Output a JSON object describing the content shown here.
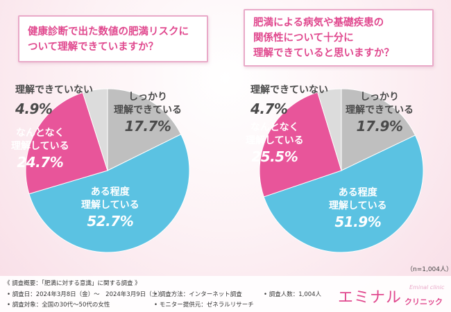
{
  "chart_data": [
    {
      "type": "pie",
      "title_lines": [
        "健康診断で出た数値の肥満リスクに",
        "ついて理解できていますか？"
      ],
      "slices": [
        {
          "label_lines": [
            "しっかり",
            "理解できている"
          ],
          "value": 17.7,
          "value_label": "17.7%",
          "color": "#bfbfbf"
        },
        {
          "label_lines": [
            "ある程度",
            "理解している"
          ],
          "value": 52.7,
          "value_label": "52.7%",
          "color": "#5bc2e2"
        },
        {
          "label_lines": [
            "なんとなく",
            "理解している"
          ],
          "value": 24.7,
          "value_label": "24.7%",
          "color": "#e8559a"
        },
        {
          "label_lines": [
            "理解できていない"
          ],
          "value": 4.9,
          "value_label": "4.9%",
          "color": "#dcdcdc"
        }
      ]
    },
    {
      "type": "pie",
      "title_lines": [
        "肥満による病気や基礎疾患の",
        "関係性について十分に",
        "理解できていると思いますか？"
      ],
      "slices": [
        {
          "label_lines": [
            "しっかり",
            "理解できている"
          ],
          "value": 17.9,
          "value_label": "17.9%",
          "color": "#bfbfbf"
        },
        {
          "label_lines": [
            "ある程度",
            "理解している"
          ],
          "value": 51.9,
          "value_label": "51.9%",
          "color": "#5bc2e2"
        },
        {
          "label_lines": [
            "なんとなく",
            "理解している"
          ],
          "value": 25.5,
          "value_label": "25.5%",
          "color": "#e8559a"
        },
        {
          "label_lines": [
            "理解できていない"
          ],
          "value": 4.7,
          "value_label": "4.7%",
          "color": "#dcdcdc"
        }
      ]
    }
  ],
  "sample_note": "（n=1,004人）",
  "footer": {
    "overview": "《 調査概要：「肥満に対する意識」に関する調査 》",
    "date": "• 調査日：2024年3月8日（金）～　2024年3月9日（土）",
    "method": "• 調査方法：インターネット調査",
    "count": "• 調査人数：1,004人",
    "target": "• 調査対象：全国の30代～50代の女性",
    "provider": "• モニター提供元：ゼネラルリサーチ"
  },
  "logo": {
    "main": "エミナル",
    "sub": "クリニック",
    "en": "Eminal clinic"
  }
}
